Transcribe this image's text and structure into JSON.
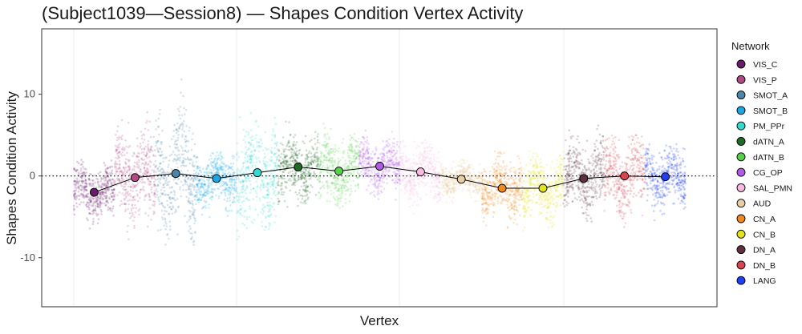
{
  "chart_data": {
    "type": "scatter",
    "title": "(Subject1039—Session8) — Shapes Condition Vertex Activity",
    "xlabel": "Vertex",
    "ylabel": "Shapes Condition Activity",
    "ylim": [
      -16,
      18
    ],
    "yticks": [
      -10,
      0,
      10
    ],
    "ytick_labels": [
      "-10",
      "0",
      "10"
    ],
    "grid": true,
    "reference_line_y": 0,
    "legend": {
      "title": "Network",
      "position": "right"
    },
    "series": [
      {
        "name": "VIS_C",
        "color": "#6a1b6e",
        "mean": -2.0,
        "spread": [
          -6.5,
          2.0
        ]
      },
      {
        "name": "VIS_P",
        "color": "#b04a85",
        "mean": -0.2,
        "spread": [
          -8.0,
          8.0
        ]
      },
      {
        "name": "SMOT_A",
        "color": "#4a86a8",
        "mean": 0.3,
        "spread": [
          -8.5,
          12.0
        ]
      },
      {
        "name": "SMOT_B",
        "color": "#1aa7e6",
        "mean": -0.3,
        "spread": [
          -6.0,
          3.0
        ]
      },
      {
        "name": "PM_PPr",
        "color": "#2fdccd",
        "mean": 0.4,
        "spread": [
          -8.0,
          8.0
        ]
      },
      {
        "name": "dATN_A",
        "color": "#1e6b24",
        "mean": 1.1,
        "spread": [
          -4.0,
          7.0
        ]
      },
      {
        "name": "dATN_B",
        "color": "#58d14a",
        "mean": 0.6,
        "spread": [
          -4.0,
          7.0
        ]
      },
      {
        "name": "CG_OP",
        "color": "#b25ae8",
        "mean": 1.2,
        "spread": [
          -3.0,
          6.0
        ]
      },
      {
        "name": "SAL_PMN",
        "color": "#f6b9df",
        "mean": 0.5,
        "spread": [
          -5.0,
          4.5
        ]
      },
      {
        "name": "AUD",
        "color": "#e7cfa1",
        "mean": -0.4,
        "spread": [
          -3.5,
          2.0
        ]
      },
      {
        "name": "CN_A",
        "color": "#f08a1c",
        "mean": -1.5,
        "spread": [
          -7.0,
          3.0
        ]
      },
      {
        "name": "CN_B",
        "color": "#e3e31c",
        "mean": -1.5,
        "spread": [
          -7.0,
          3.5
        ]
      },
      {
        "name": "DN_A",
        "color": "#5e3040",
        "mean": -0.3,
        "spread": [
          -6.0,
          6.5
        ]
      },
      {
        "name": "DN_B",
        "color": "#d64550",
        "mean": 0.0,
        "spread": [
          -7.0,
          5.0
        ]
      },
      {
        "name": "LANG",
        "color": "#1f3ff2",
        "mean": -0.1,
        "spread": [
          -6.5,
          4.0
        ]
      }
    ]
  }
}
